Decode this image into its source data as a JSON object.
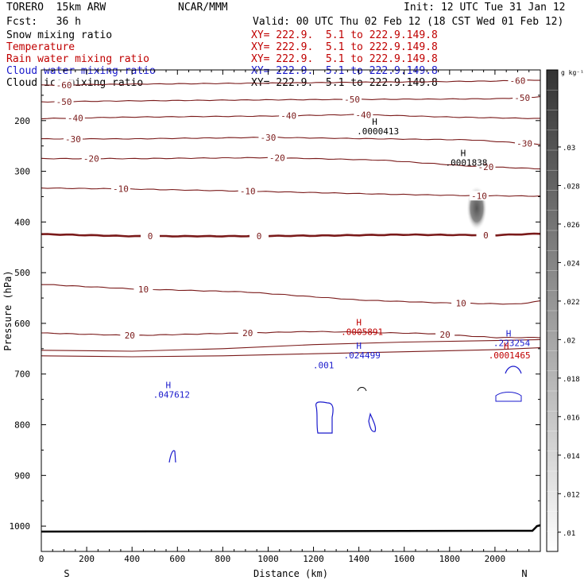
{
  "header": {
    "model": "TORERO  15km ARW",
    "forecast": "Fcst:   36 h",
    "org": "NCAR/MMM",
    "init": "Init: 12 UTC Tue 31 Jan 12",
    "valid": "Valid: 00 UTC Thu 02 Feb 12 (18 CST Wed 01 Feb 12)"
  },
  "fields": [
    {
      "name": "Snow mixing ratio",
      "xy": "XY= 222.9.  5.1 to 222.9.149.8",
      "color": "#000000"
    },
    {
      "name": "Temperature",
      "xy": "XY= 222.9.  5.1 to 222.9.149.8",
      "color": "#c00000"
    },
    {
      "name": "Rain water mixing ratio",
      "xy": "XY= 222.9.  5.1 to 222.9.149.8",
      "color": "#c00000"
    },
    {
      "name": "Cloud water mixing ratio",
      "xy": "XY= 222.9.  5.1 to 222.9.149.8",
      "color": "#1a1acc"
    },
    {
      "name": "Cloud ice mixing ratio",
      "xy": "XY= 222.9.  5.1 to 222.9.149.8",
      "color": "#000000"
    }
  ],
  "chart_data": {
    "type": "contour-cross-section",
    "xlabel": "Distance (km)",
    "ylabel": "Pressure (hPa)",
    "xlim": [
      0,
      2200
    ],
    "ylim": [
      1050,
      100
    ],
    "xticks": [
      0,
      200,
      400,
      600,
      800,
      1000,
      1200,
      1400,
      1600,
      1800,
      2000
    ],
    "yticks": [
      200,
      300,
      400,
      500,
      600,
      700,
      800,
      900,
      1000
    ],
    "x_end_labels": {
      "left": "S",
      "right": "N"
    },
    "colorbar": {
      "unit": "g kg⁻¹",
      "ticks": [
        ".01",
        ".012",
        ".014",
        ".016",
        ".018",
        ".02",
        ".022",
        ".024",
        ".026",
        ".028",
        ".03"
      ],
      "range": [
        0.009,
        0.034
      ]
    },
    "temperature_contours": [
      {
        "label": "-60",
        "x": [
          0,
          400,
          1000,
          1500,
          2000,
          2200
        ],
        "p": [
          130,
          128,
          126,
          124,
          122,
          120
        ],
        "label_at": [
          [
            100,
            -60
          ],
          [
            2100,
            -60
          ]
        ]
      },
      {
        "label": "-50",
        "x": [
          0,
          400,
          1000,
          1500,
          2000,
          2200
        ],
        "p": [
          163,
          161,
          159,
          158,
          157,
          153
        ],
        "label_at": [
          [
            100,
            -50
          ],
          [
            1370,
            -50
          ],
          [
            2120,
            -50
          ]
        ]
      },
      {
        "label": "-40",
        "x": [
          0,
          400,
          1000,
          1400,
          1800,
          2200
        ],
        "p": [
          196,
          193,
          191,
          188,
          193,
          196
        ],
        "label_at": [
          [
            150,
            -40
          ],
          [
            1090,
            -40
          ],
          [
            1420,
            -40
          ]
        ]
      },
      {
        "label": "-30",
        "x": [
          0,
          400,
          1000,
          1500,
          1900,
          2200
        ],
        "p": [
          236,
          236,
          233,
          236,
          238,
          247
        ],
        "label_at": [
          [
            140,
            -30
          ],
          [
            1000,
            -30
          ],
          [
            2130,
            -30
          ]
        ]
      },
      {
        "label": "-20",
        "x": [
          0,
          400,
          1000,
          1500,
          1900,
          2200
        ],
        "p": [
          275,
          275,
          273,
          278,
          290,
          295
        ],
        "label_at": [
          [
            220,
            -20
          ],
          [
            1040,
            -20
          ],
          [
            1960,
            -20
          ]
        ]
      },
      {
        "label": "-10",
        "x": [
          0,
          400,
          1000,
          1500,
          1900,
          2200
        ],
        "p": [
          333,
          335,
          340,
          345,
          348,
          349
        ],
        "label_at": [
          [
            350,
            -10
          ],
          [
            910,
            -10
          ],
          [
            1930,
            -10
          ]
        ]
      },
      {
        "label": "0",
        "x": [
          0,
          400,
          800,
          1200,
          1600,
          2000,
          2200
        ],
        "p": [
          424,
          428,
          428,
          427,
          425,
          426,
          423
        ],
        "label_at": [
          [
            480,
            0
          ],
          [
            960,
            0
          ],
          [
            1960,
            0
          ]
        ]
      },
      {
        "label": "10",
        "x": [
          0,
          400,
          900,
          1400,
          1800,
          2100,
          2200
        ],
        "p": [
          523,
          532,
          538,
          554,
          560,
          562,
          556
        ],
        "label_at": [
          [
            450,
            10
          ],
          [
            1850,
            10
          ]
        ]
      },
      {
        "label": "20",
        "x": [
          0,
          400,
          800,
          1200,
          1700,
          2000,
          2200
        ],
        "p": [
          619,
          624,
          620,
          616,
          620,
          628,
          628
        ],
        "label_at": [
          [
            390,
            20
          ],
          [
            910,
            20
          ],
          [
            1780,
            20
          ]
        ]
      }
    ],
    "maxima": [
      {
        "field": "cloud ice",
        "x": 1470,
        "p": 208,
        "label": ".0000413",
        "color": "#000000"
      },
      {
        "field": "snow",
        "x": 1860,
        "p": 270,
        "label": ".0001838",
        "color": "#000000"
      },
      {
        "field": "rain water",
        "x": 1400,
        "p": 604,
        "label": ".0005891",
        "color": "#c00000"
      },
      {
        "field": "cloud water",
        "x": 1400,
        "p": 650,
        "label": ".024499",
        "color": "#1a1acc"
      },
      {
        "field": "cloud water",
        "x": 2060,
        "p": 626,
        "label": ".223254",
        "color": "#1a1acc"
      },
      {
        "field": "rain water",
        "x": 2050,
        "p": 650,
        "label": ".0001465",
        "color": "#c00000"
      },
      {
        "field": "cloud water",
        "x": 560,
        "p": 728,
        "label": ".047612",
        "color": "#1a1acc"
      },
      {
        "field": "cloud water",
        "x": 1230,
        "p": 670,
        "label": ".001",
        "color": "#1a1acc"
      }
    ],
    "marker_symbol": "H"
  }
}
